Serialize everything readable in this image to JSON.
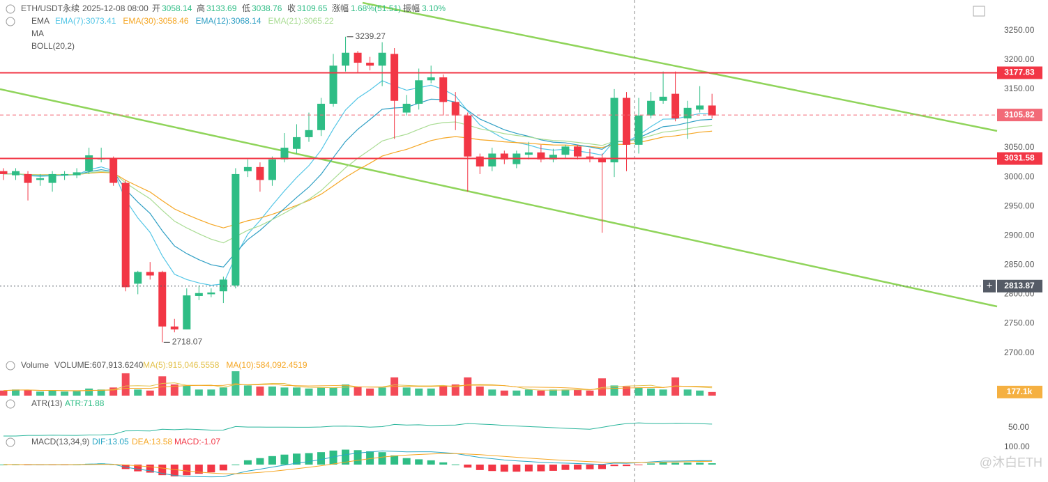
{
  "header": {
    "symbol": "ETH/USDT永续",
    "date": "2025-12-08 08:00",
    "open_label": "开",
    "open": 3058.14,
    "high_label": "高",
    "high": 3133.69,
    "low_label": "低",
    "low": 3038.76,
    "close_label": "收",
    "close": 3109.65,
    "change_label": "涨幅",
    "change": "1.68%(51.51)",
    "amp_label": "振幅",
    "amp": "3.10%"
  },
  "legend": {
    "ema_title": "EMA",
    "ma_title": "MA",
    "boll_title": "BOLL(20,2)"
  },
  "watermark": "@沐白ETH",
  "chart_data": {
    "type": "candlestick",
    "open": [
      3010,
      3003,
      3005,
      2995,
      2990,
      3003,
      3003,
      3010,
      3030,
      3032,
      2990,
      2818,
      2838,
      2838,
      2745,
      2740,
      2797,
      2800,
      2805,
      2815,
      3010,
      3017,
      2995,
      3030,
      3048,
      3068,
      3080,
      3125,
      3190,
      3212,
      3195,
      3190,
      3210,
      3110,
      3125,
      3165,
      3170,
      3128,
      3105,
      3035,
      3018,
      3040,
      3022,
      3038,
      3042,
      3030,
      3038,
      3052,
      3035,
      3033,
      3025,
      3135,
      3055,
      3105,
      3130,
      3142,
      3100,
      3115,
      3122
    ],
    "high": [
      3015,
      3015,
      3010,
      3005,
      3010,
      3010,
      3015,
      3050,
      3050,
      3035,
      2995,
      2840,
      2855,
      2840,
      2758,
      2810,
      2815,
      2810,
      2830,
      3015,
      3030,
      3025,
      3035,
      3075,
      3090,
      3110,
      3135,
      3210,
      3239.27,
      3215,
      3205,
      3230,
      3220,
      3140,
      3185,
      3190,
      3175,
      3145,
      3110,
      3040,
      3050,
      3045,
      3045,
      3060,
      3055,
      3048,
      3055,
      3055,
      3048,
      3040,
      3150,
      3145,
      3135,
      3145,
      3180,
      3180,
      3130,
      3155,
      3142
    ],
    "low": [
      2995,
      2995,
      2960,
      2985,
      2975,
      2995,
      2998,
      3005,
      3025,
      2985,
      2805,
      2800,
      2825,
      2718.07,
      2735,
      2740,
      2790,
      2795,
      2785,
      2810,
      3000,
      2975,
      2985,
      3025,
      3040,
      3060,
      3070,
      3120,
      3180,
      3178,
      3182,
      3155,
      3065,
      3105,
      3115,
      3160,
      3105,
      3080,
      2975,
      3005,
      3010,
      3022,
      3015,
      3030,
      3025,
      3025,
      3032,
      3030,
      3025,
      2905,
      3000,
      3010,
      3040,
      3100,
      3125,
      3095,
      3065,
      3110,
      3100
    ],
    "close": [
      3005,
      3010,
      2990,
      2998,
      3005,
      3005,
      3008,
      3037,
      3032,
      2990,
      2812,
      2838,
      2832,
      2745,
      2740,
      2798,
      2802,
      2803,
      2825,
      3005,
      3017,
      2995,
      3030,
      3050,
      3068,
      3080,
      3125,
      3190,
      3212,
      3195,
      3190,
      3212,
      3130,
      3125,
      3165,
      3170,
      3128,
      3105,
      3035,
      3018,
      3040,
      3030,
      3040,
      3042,
      3030,
      3038,
      3052,
      3035,
      3033,
      3025,
      3135,
      3055,
      3105,
      3130,
      3137,
      3100,
      3118,
      3122,
      3105
    ],
    "up_color": "#2ebd85",
    "down_color": "#f23645",
    "ylim": [
      2690,
      3302
    ],
    "yticks": [
      {
        "value": 2700,
        "label": "2700.00"
      },
      {
        "value": 2750,
        "label": "2750.00"
      },
      {
        "value": 2800,
        "label": "2800.00"
      },
      {
        "value": 2850,
        "label": "2850.00"
      },
      {
        "value": 2900,
        "label": "2900.00"
      },
      {
        "value": 2950,
        "label": "2950.00"
      },
      {
        "value": 3000,
        "label": "3000.00"
      },
      {
        "value": 3050,
        "label": "3050.00"
      },
      {
        "value": 3100,
        "label": "3100.00"
      },
      {
        "value": 3150,
        "label": "3150.00"
      },
      {
        "value": 3200,
        "label": "3200.00"
      },
      {
        "value": 3250,
        "label": "3250.00"
      }
    ],
    "ema": [
      {
        "name": "EMA(7):3073.41",
        "period": 7,
        "color": "#53c6e6"
      },
      {
        "name": "EMA(30):3058.46",
        "period": 30,
        "color": "#f5a623"
      },
      {
        "name": "EMA(12):3068.14",
        "period": 12,
        "color": "#2f9fc4"
      },
      {
        "name": "EMA(21):3065.22",
        "period": 21,
        "color": "#a9dc93"
      }
    ],
    "high_marker": 3239.27,
    "low_marker": 2718.07,
    "price_lines": [
      {
        "value": 3177.83,
        "color": "#f23645",
        "style": "solid"
      },
      {
        "value": 3105.82,
        "color": "#f26a78",
        "style": "dashed"
      },
      {
        "value": 3031.58,
        "color": "#f23645",
        "style": "solid"
      },
      {
        "value": 2813.87,
        "color": "#555b66",
        "style": "dotted"
      }
    ],
    "volume": {
      "title": "Volume",
      "label": "VOLUME:607,913.6240",
      "values": [
        250,
        300,
        280,
        200,
        250,
        200,
        220,
        350,
        300,
        400,
        1100,
        300,
        250,
        950,
        550,
        500,
        300,
        300,
        400,
        1200,
        500,
        450,
        450,
        400,
        400,
        350,
        400,
        400,
        550,
        450,
        350,
        400,
        900,
        400,
        350,
        350,
        500,
        550,
        900,
        450,
        300,
        250,
        250,
        300,
        250,
        300,
        300,
        300,
        250,
        850,
        500,
        450,
        400,
        350,
        300,
        900,
        300,
        250,
        177.1
      ],
      "ylim": [
        0,
        1200
      ],
      "last": {
        "value": 177.1,
        "label": "177.1k"
      },
      "ma": [
        {
          "name": "MA(5):915,046.5558",
          "period": 5,
          "color": "#e3c14a"
        },
        {
          "name": "MA(10):584,092.4519",
          "period": 10,
          "color": "#f5a623"
        }
      ]
    },
    "atr": {
      "title": "ATR(13)",
      "label": "ATR:71.88",
      "period": 13,
      "color": "#26b49a",
      "yticks": [
        {
          "value": 50,
          "label": "50.00"
        }
      ]
    },
    "macd": {
      "title": "MACD(13,34,9)",
      "dif": "DIF:13.05",
      "dea": "DEA:13.58",
      "macd": "MACD:-1.07",
      "fast": 13,
      "slow": 34,
      "signal": 9,
      "yticks": [
        {
          "value": 100,
          "label": "100.00"
        }
      ]
    }
  }
}
